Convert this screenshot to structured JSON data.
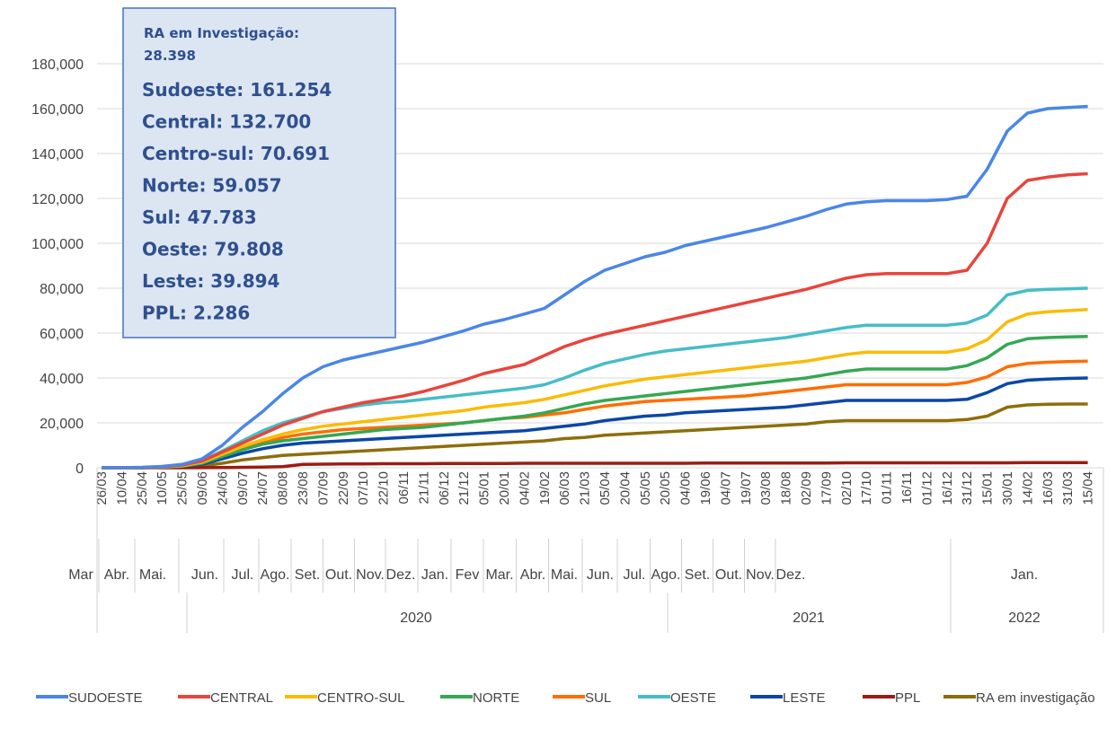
{
  "chart_data": {
    "type": "line",
    "categories": [
      "26/03",
      "10/04",
      "25/04",
      "10/05",
      "25/05",
      "09/06",
      "24/06",
      "09/07",
      "24/07",
      "08/08",
      "23/08",
      "07/09",
      "22/09",
      "07/10",
      "22/10",
      "06/11",
      "21/11",
      "06/12",
      "21/12",
      "05/01",
      "20/01",
      "04/02",
      "19/02",
      "06/03",
      "21/03",
      "05/04",
      "20/04",
      "05/05",
      "20/05",
      "04/06",
      "19/06",
      "04/07",
      "19/07",
      "03/08",
      "18/08",
      "02/09",
      "17/09",
      "02/10",
      "17/10",
      "01/11",
      "16/11",
      "01/12",
      "16/12",
      "31/12",
      "15/01",
      "30/01",
      "14/02",
      "16/03",
      "31/03",
      "15/04"
    ],
    "months": [
      "Mar",
      "Abr.",
      "Mai.",
      "Jun.",
      "Jul.",
      "Ago.",
      "Set.",
      "Out.",
      "Nov.",
      "Dez.",
      "Jan.",
      "Fev",
      "Mar.",
      "Abr.",
      "Mai.",
      "Jun.",
      "Jul.",
      "Ago.",
      "Set.",
      "Out.",
      "Nov.",
      "Dez.",
      "Jan."
    ],
    "years": [
      "2020",
      "2021",
      "2022"
    ],
    "ylim": [
      0,
      180000
    ],
    "yticks": [
      0,
      {
        "value": 20000,
        "label": "20,000"
      },
      {
        "value": 40000,
        "label": "40,000"
      },
      {
        "value": 60000,
        "label": "60,000"
      },
      {
        "value": 80000,
        "label": "80,000"
      },
      {
        "value": 100000,
        "label": "100,000"
      },
      {
        "value": 120000,
        "label": "120,000"
      },
      {
        "value": 140000,
        "label": "140,000"
      },
      {
        "value": 160000,
        "label": "160,000"
      },
      {
        "value": 180000,
        "label": "180,000"
      }
    ],
    "grid": true,
    "legend": "bottom",
    "annotation": {
      "heading": [
        "RA em Investigação:",
        "28.398"
      ],
      "lines": [
        "Sudoeste: 161.254",
        "Central: 132.700",
        "Centro-sul: 70.691",
        "Norte: 59.057",
        "Sul: 47.783",
        "Oeste: 79.808",
        "Leste: 39.894",
        "PPL: 2.286"
      ]
    },
    "series": [
      {
        "name": "SUDOESTE",
        "color": "#4a86e8",
        "values": [
          0,
          0,
          200,
          600,
          1500,
          4000,
          10000,
          18000,
          25000,
          33000,
          40000,
          45000,
          48000,
          50000,
          52000,
          54000,
          56000,
          58500,
          61000,
          64000,
          66000,
          68500,
          71000,
          77000,
          83000,
          88000,
          91000,
          94000,
          96000,
          99000,
          101000,
          103000,
          105000,
          107000,
          109500,
          112000,
          115000,
          117500,
          118500,
          119000,
          119000,
          119000,
          119500,
          121000,
          133000,
          150000,
          158000,
          160000,
          160500,
          161000
        ]
      },
      {
        "name": "CENTRAL",
        "color": "#e8453c",
        "values": [
          0,
          0,
          100,
          400,
          1200,
          3000,
          7000,
          11000,
          15000,
          19000,
          22000,
          25000,
          27000,
          29000,
          30500,
          32000,
          34000,
          36500,
          39000,
          42000,
          44000,
          46000,
          50000,
          54000,
          57000,
          59500,
          61500,
          63500,
          65500,
          67500,
          69500,
          71500,
          73500,
          75500,
          77500,
          79500,
          82000,
          84500,
          86000,
          86500,
          86500,
          86500,
          86500,
          88000,
          100000,
          120000,
          128000,
          129500,
          130500,
          131000
        ]
      },
      {
        "name": "CENTRO-SUL",
        "color": "#f9bc05",
        "values": [
          0,
          0,
          80,
          300,
          900,
          2500,
          6000,
          9500,
          12500,
          15000,
          17000,
          18500,
          19500,
          20500,
          21500,
          22500,
          23500,
          24500,
          25500,
          27000,
          28000,
          29000,
          30500,
          32500,
          34500,
          36500,
          38000,
          39500,
          40500,
          41500,
          42500,
          43500,
          44500,
          45500,
          46500,
          47500,
          49000,
          50500,
          51500,
          51500,
          51500,
          51500,
          51500,
          53000,
          57000,
          65000,
          68500,
          69500,
          70000,
          70500
        ]
      },
      {
        "name": "NORTE",
        "color": "#34a853",
        "values": [
          0,
          0,
          60,
          250,
          700,
          2000,
          5000,
          8000,
          10500,
          12000,
          13000,
          14000,
          15000,
          16000,
          17000,
          17500,
          18000,
          19000,
          20000,
          21000,
          22000,
          23000,
          24500,
          26500,
          28500,
          30000,
          31000,
          32000,
          33000,
          34000,
          35000,
          36000,
          37000,
          38000,
          39000,
          40000,
          41500,
          43000,
          44000,
          44000,
          44000,
          44000,
          44000,
          45500,
          49000,
          55000,
          57500,
          58000,
          58300,
          58500
        ]
      },
      {
        "name": "SUL",
        "color": "#ff6d01",
        "values": [
          0,
          0,
          70,
          280,
          800,
          2200,
          5500,
          8500,
          11000,
          13500,
          15000,
          16000,
          17000,
          17500,
          18000,
          18500,
          19000,
          19500,
          20000,
          21000,
          22000,
          22500,
          23500,
          24500,
          26000,
          27500,
          28500,
          29500,
          30000,
          30500,
          31000,
          31500,
          32000,
          33000,
          34000,
          35000,
          36000,
          37000,
          37000,
          37000,
          37000,
          37000,
          37000,
          38000,
          40500,
          45000,
          46500,
          47000,
          47300,
          47500
        ]
      },
      {
        "name": "OESTE",
        "color": "#46bdc6",
        "values": [
          0,
          0,
          100,
          400,
          1200,
          3000,
          7500,
          12000,
          16500,
          20000,
          22500,
          25000,
          26500,
          28000,
          29000,
          29500,
          30500,
          31500,
          32500,
          33500,
          34500,
          35500,
          37000,
          40000,
          43500,
          46500,
          48500,
          50500,
          52000,
          53000,
          54000,
          55000,
          56000,
          57000,
          58000,
          59500,
          61000,
          62500,
          63500,
          63500,
          63500,
          63500,
          63500,
          64500,
          68000,
          77000,
          79000,
          79500,
          79700,
          80000
        ]
      },
      {
        "name": "LESTE",
        "color": "#0b47a8",
        "values": [
          0,
          0,
          50,
          200,
          600,
          1600,
          4000,
          6500,
          8500,
          10000,
          11000,
          11500,
          12000,
          12500,
          13000,
          13500,
          14000,
          14500,
          15000,
          15500,
          16000,
          16500,
          17500,
          18500,
          19500,
          21000,
          22000,
          23000,
          23500,
          24500,
          25000,
          25500,
          26000,
          26500,
          27000,
          28000,
          29000,
          30000,
          30000,
          30000,
          30000,
          30000,
          30000,
          30500,
          33500,
          37500,
          39000,
          39500,
          39800,
          40000
        ]
      },
      {
        "name": "PPL",
        "color": "#9c1c14",
        "values": [
          0,
          0,
          0,
          0,
          0,
          50,
          100,
          200,
          300,
          500,
          1500,
          1600,
          1700,
          1700,
          1800,
          1800,
          1800,
          1900,
          1900,
          1900,
          1900,
          2000,
          2000,
          2000,
          2000,
          2000,
          2000,
          2000,
          2000,
          2000,
          2100,
          2100,
          2100,
          2100,
          2100,
          2100,
          2100,
          2200,
          2200,
          2200,
          2200,
          2200,
          2200,
          2200,
          2200,
          2200,
          2300,
          2300,
          2300,
          2300
        ]
      },
      {
        "name": "RA em investigação",
        "color": "#8d6e0b",
        "values": [
          0,
          0,
          30,
          100,
          300,
          800,
          2000,
          3500,
          4500,
          5500,
          6000,
          6500,
          7000,
          7500,
          8000,
          8500,
          9000,
          9500,
          10000,
          10500,
          11000,
          11500,
          12000,
          13000,
          13500,
          14500,
          15000,
          15500,
          16000,
          16500,
          17000,
          17500,
          18000,
          18500,
          19000,
          19500,
          20500,
          21000,
          21000,
          21000,
          21000,
          21000,
          21000,
          21500,
          23000,
          27000,
          28000,
          28300,
          28400,
          28400
        ]
      }
    ]
  }
}
